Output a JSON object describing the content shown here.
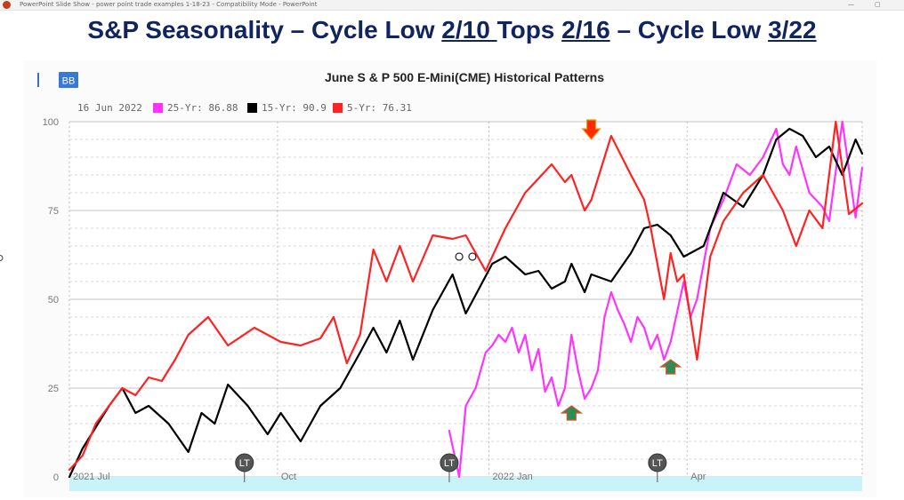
{
  "window": {
    "title": "PowerPoint Slide Show  -  power point trade examples 1-18-23  -  Compatibility Mode - PowerPoint",
    "minimize_glyph": "—",
    "restore_glyph": "▢"
  },
  "slide": {
    "title_parts": [
      "S&P Seasonality – Cycle Low ",
      "2/10 ",
      "Tops ",
      "2/16",
      " – Cycle Low ",
      "3/22"
    ]
  },
  "chart_data": {
    "type": "line",
    "title": "June S & P 500 E-Mini(CME) Historical Patterns",
    "badge": "BB",
    "legend": {
      "date": "16 Jun 2022",
      "placement": "top-left",
      "entries": [
        {
          "label": "25-Yr: 86.88",
          "color": "#ff33ff"
        },
        {
          "label": "15-Yr: 90.9",
          "color": "#000000"
        },
        {
          "label": "5-Yr: 76.31",
          "color": "#ff2222"
        }
      ]
    },
    "xlabel": "",
    "ylabel": "",
    "ylim": [
      0,
      100
    ],
    "y_ticks": [
      "0",
      "25",
      "50",
      "75",
      "100"
    ],
    "x_ticks": [
      "2021 Jul",
      "Oct",
      "2022 Jan",
      "Apr"
    ],
    "x_range_trading_days": [
      0,
      240
    ],
    "x_tick_positions": [
      0,
      63,
      127,
      187
    ],
    "grid": true,
    "colors": {
      "25yr": "#ff33ff",
      "15yr": "#000000",
      "5yr": "#ff2222",
      "up_arrow": "#2e8b57",
      "down_arrow": "#ff2a00",
      "arrow_outline": "#d9a520",
      "lt_badge": "#555555",
      "band": "#c9f3fb"
    },
    "series": [
      {
        "name": "5-Yr",
        "color": "#ff2222",
        "x": [
          0,
          4,
          8,
          12,
          16,
          20,
          24,
          28,
          32,
          36,
          42,
          48,
          56,
          64,
          70,
          76,
          80,
          84,
          88,
          92,
          96,
          100,
          104,
          110,
          116,
          120,
          126,
          132,
          138,
          142,
          146,
          150,
          152,
          156,
          158,
          164,
          170,
          174,
          176,
          178,
          180,
          182,
          184,
          186,
          190,
          194,
          198,
          204,
          210,
          216,
          220,
          224,
          228,
          232,
          236,
          240
        ],
        "values": [
          2,
          6,
          15,
          20,
          25,
          23,
          28,
          27,
          33,
          40,
          45,
          37,
          42,
          38,
          37,
          39,
          45,
          32,
          40,
          64,
          55,
          65,
          55,
          68,
          67,
          68,
          58,
          70,
          80,
          84,
          88,
          83,
          85,
          75,
          78,
          96,
          85,
          78,
          70,
          60,
          50,
          63,
          55,
          57,
          33,
          62,
          72,
          80,
          85,
          75,
          65,
          75,
          70,
          100,
          74,
          77
        ]
      },
      {
        "name": "15-Yr",
        "color": "#000000",
        "x": [
          0,
          4,
          8,
          12,
          16,
          20,
          24,
          30,
          36,
          40,
          44,
          48,
          54,
          60,
          64,
          70,
          76,
          82,
          88,
          92,
          96,
          100,
          104,
          110,
          116,
          120,
          124,
          128,
          132,
          138,
          142,
          146,
          150,
          152,
          156,
          158,
          164,
          170,
          174,
          178,
          182,
          186,
          192,
          198,
          204,
          210,
          214,
          218,
          222,
          226,
          230,
          234,
          238,
          240
        ],
        "values": [
          0,
          8,
          14,
          20,
          25,
          18,
          20,
          15,
          7,
          18,
          15,
          26,
          20,
          12,
          18,
          10,
          20,
          25,
          35,
          42,
          35,
          44,
          33,
          47,
          57,
          46,
          53,
          60,
          62,
          57,
          58,
          53,
          55,
          60,
          52,
          57,
          55,
          63,
          70,
          71,
          68,
          62,
          65,
          80,
          76,
          85,
          95,
          98,
          96,
          90,
          93,
          85,
          95,
          91
        ]
      },
      {
        "name": "25-Yr",
        "color": "#ff33ff",
        "x": [
          115,
          118,
          120,
          123,
          126,
          128,
          130,
          132,
          134,
          136,
          138,
          140,
          142,
          144,
          146,
          148,
          150,
          152,
          154,
          156,
          158,
          160,
          162,
          164,
          166,
          168,
          170,
          172,
          174,
          176,
          178,
          180,
          182,
          186,
          188,
          190,
          192,
          194,
          198,
          202,
          206,
          210,
          214,
          216,
          218,
          220,
          224,
          228,
          230,
          234,
          238,
          240
        ],
        "values": [
          13,
          0,
          20,
          25,
          35,
          37,
          40,
          38,
          42,
          35,
          40,
          30,
          36,
          24,
          28,
          20,
          25,
          40,
          30,
          22,
          25,
          30,
          45,
          52,
          47,
          43,
          38,
          45,
          42,
          36,
          40,
          33,
          38,
          55,
          45,
          50,
          60,
          70,
          78,
          88,
          85,
          90,
          98,
          88,
          85,
          93,
          80,
          76,
          72,
          100,
          73,
          87
        ]
      }
    ],
    "annotations": [
      {
        "type": "down-arrow",
        "x": 158,
        "y": 97
      },
      {
        "type": "up-arrow",
        "x": 152,
        "y": 18
      },
      {
        "type": "up-arrow",
        "x": 182,
        "y": 31
      },
      {
        "type": "lt-badge",
        "x": 53,
        "label": "LT"
      },
      {
        "type": "lt-badge",
        "x": 115,
        "label": "LT"
      },
      {
        "type": "lt-badge",
        "x": 178,
        "label": "LT"
      },
      {
        "type": "circle-marker",
        "x": 118,
        "y": 62
      },
      {
        "type": "circle-marker",
        "x": 122,
        "y": 62
      }
    ]
  }
}
